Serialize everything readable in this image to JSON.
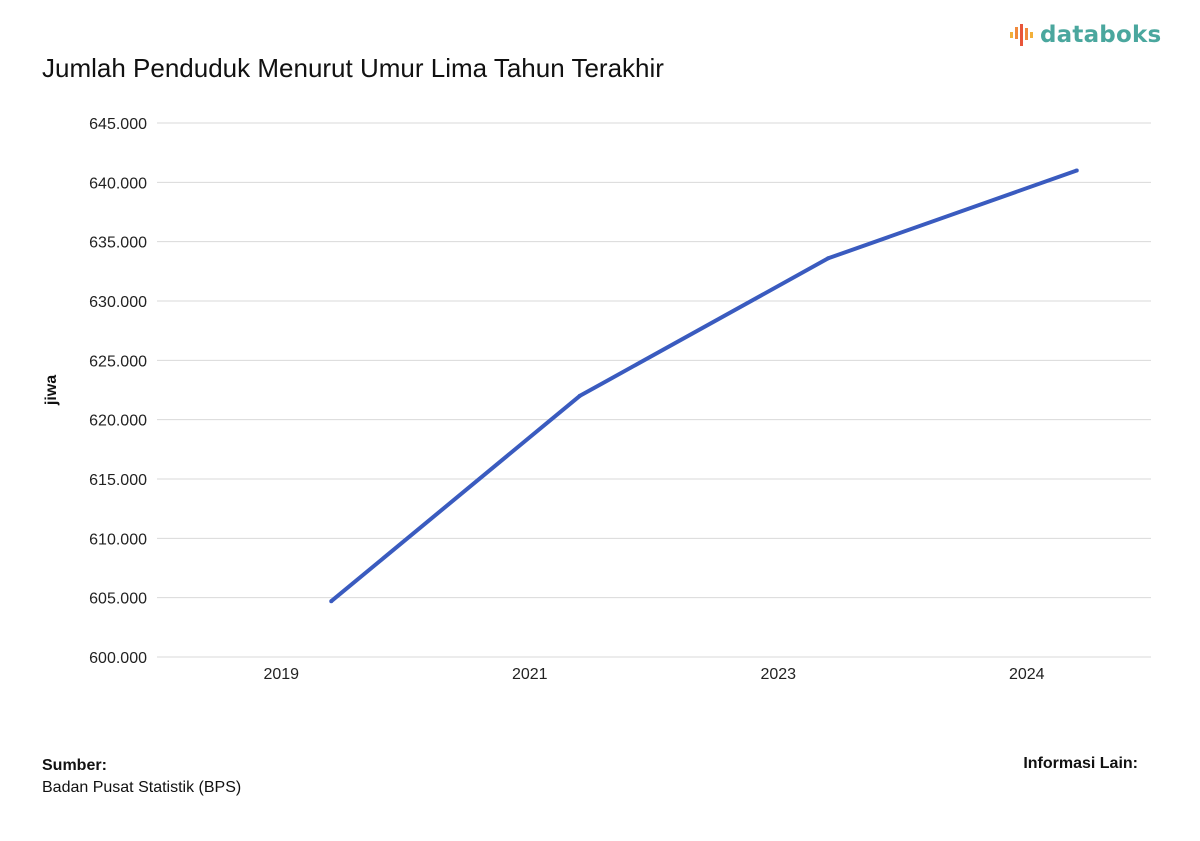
{
  "brand": {
    "name": "databoks",
    "icon": "databoks-bars-icon",
    "text_color": "#4aa79e",
    "icon_colors": [
      "#e8553a",
      "#f08a3c",
      "#f3b03a"
    ]
  },
  "title": "Jumlah Penduduk Menurut Umur Lima Tahun Terakhir",
  "chart_data": {
    "type": "line",
    "categories": [
      "2019",
      "2021",
      "2023",
      "2024"
    ],
    "series": [
      {
        "values": [
          604700,
          622000,
          633600,
          641000
        ],
        "color": "#3a5bbf"
      }
    ],
    "xlabel": "",
    "ylabel": "jiwa",
    "ylim": [
      600000,
      645000
    ],
    "yticks": [
      "600.000",
      "605.000",
      "610.000",
      "615.000",
      "620.000",
      "625.000",
      "630.000",
      "635.000",
      "640.000",
      "645.000"
    ],
    "grid": true,
    "gridColor": "#d9d9d9"
  },
  "footer": {
    "source_heading": "Sumber:",
    "source_text": "Badan Pusat Statistik (BPS)",
    "other_info": "Informasi Lain:"
  }
}
